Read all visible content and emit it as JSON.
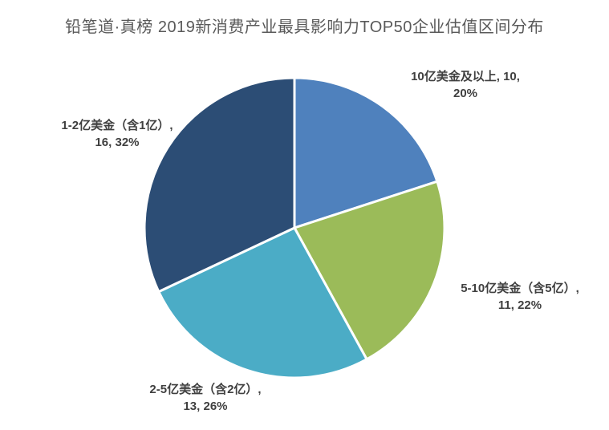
{
  "page": {
    "background": "#FFFFFF"
  },
  "chart_data": {
    "type": "pie",
    "title": "铅笔道·真榜 2019新消费产业最具影响力TOP50企业估值区间分布",
    "title_color": "#595959",
    "label_color": "#404040",
    "total": 50,
    "start_angle_deg": 0,
    "direction": "clockwise",
    "legend_position": "none",
    "slice_border_color": "#FFFFFF",
    "slices": [
      {
        "category": "10亿美金及以上",
        "value": 10,
        "percent": "20%",
        "color": "#4F81BD",
        "label_lines": [
          "10亿美金及以上, 10,",
          "20%"
        ]
      },
      {
        "category": "5-10亿美金（含5亿）",
        "value": 11,
        "percent": "22%",
        "color": "#9BBB59",
        "label_lines": [
          "5-10亿美金（含5亿）,",
          "11, 22%"
        ]
      },
      {
        "category": "2-5亿美金（含2亿）",
        "value": 13,
        "percent": "26%",
        "color": "#4BACC6",
        "label_lines": [
          "2-5亿美金（含2亿）,",
          "13, 26%"
        ]
      },
      {
        "category": "1-2亿美金（含1亿）",
        "value": 16,
        "percent": "32%",
        "color": "#2C4D75",
        "label_lines": [
          "1-2亿美金（含1亿）,",
          "16, 32%"
        ]
      }
    ]
  }
}
